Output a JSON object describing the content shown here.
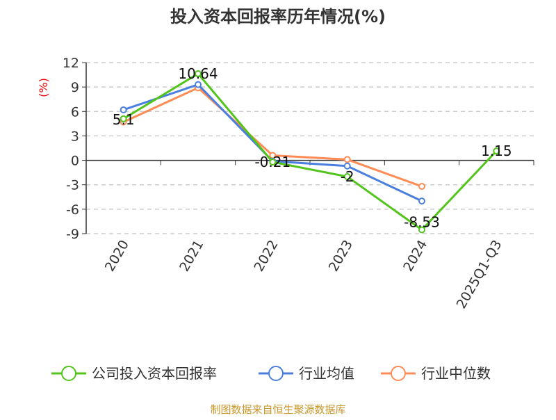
{
  "chart_data": {
    "type": "line",
    "title": "投入资本回报率历年情况(%)",
    "ylabel": "(%)",
    "xlabel": "",
    "ylim": [
      -9,
      12
    ],
    "yticks": [
      12,
      9,
      6,
      3,
      0,
      -3,
      -6,
      -9
    ],
    "grid": true,
    "legend_position": "bottom",
    "categories": [
      "2020",
      "2021",
      "2022",
      "2023",
      "2024",
      "2025Q1-Q3"
    ],
    "series": [
      {
        "name": "公司投入资本回报率",
        "color": "#52c41a",
        "values": [
          5.1,
          10.64,
          -0.21,
          -2,
          -8.53,
          1.15
        ],
        "labels": [
          "5.1",
          "10.64",
          "-0.21",
          "-2",
          "-8.53",
          "1.15"
        ]
      },
      {
        "name": "行业均值",
        "color": "#4a7fe0",
        "values": [
          6.2,
          9.3,
          -0.1,
          -0.7,
          -5.0,
          null
        ]
      },
      {
        "name": "行业中位数",
        "color": "#ff8c55",
        "values": [
          4.7,
          8.9,
          0.6,
          0.1,
          -3.2,
          null
        ]
      }
    ]
  },
  "footer": {
    "source": "制图数据来自恒生聚源数据库",
    "source_color": "#c8962a"
  }
}
